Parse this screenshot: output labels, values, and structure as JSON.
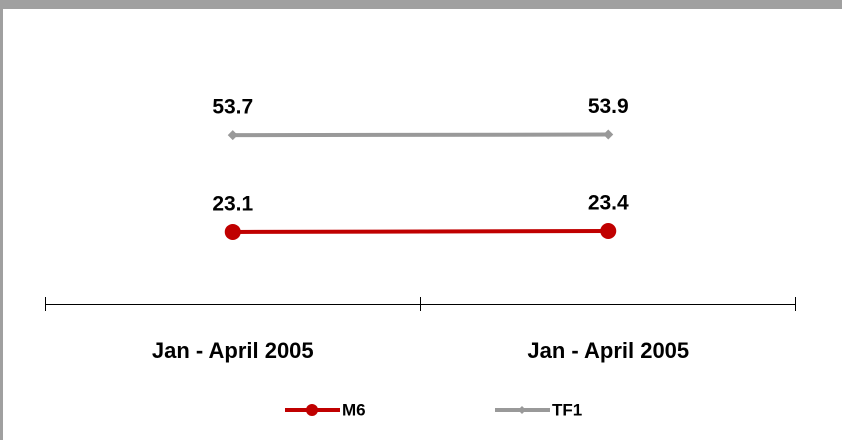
{
  "chart_data": {
    "type": "line",
    "categories": [
      "Jan - April 2005",
      "Jan - April 2005"
    ],
    "series": [
      {
        "name": "M6",
        "color": "#c00000",
        "values": [
          23.1,
          23.4
        ]
      },
      {
        "name": "TF1",
        "color": "#999999",
        "values": [
          53.7,
          53.9
        ]
      }
    ],
    "ylim": [
      0,
      80
    ]
  }
}
